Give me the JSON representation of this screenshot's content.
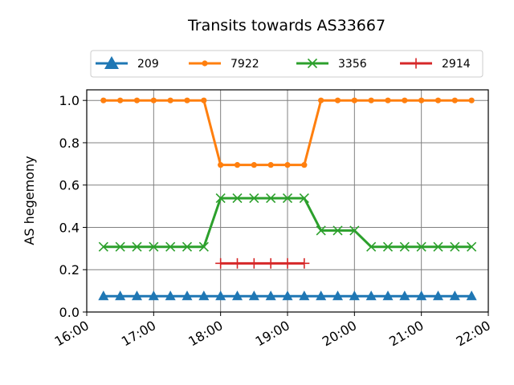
{
  "chart_data": {
    "type": "line",
    "title": "Transits towards AS33667",
    "xlabel": "",
    "ylabel": "AS hegemony",
    "x_ticks": [
      "16:00",
      "17:00",
      "18:00",
      "19:00",
      "20:00",
      "21:00",
      "22:00"
    ],
    "y_ticks": [
      "0.0",
      "0.2",
      "0.4",
      "0.6",
      "0.8",
      "1.0"
    ],
    "xlim": [
      "16:00",
      "22:00"
    ],
    "ylim": [
      0,
      1.05
    ],
    "grid": true,
    "legend_position": "top",
    "series": [
      {
        "name": "209",
        "color": "#1f77b4",
        "marker": "triangle",
        "x": [
          "16:15",
          "16:30",
          "16:45",
          "17:00",
          "17:15",
          "17:30",
          "17:45",
          "18:00",
          "18:15",
          "18:30",
          "18:45",
          "19:00",
          "19:15",
          "19:30",
          "19:45",
          "20:00",
          "20:15",
          "20:30",
          "20:45",
          "21:00",
          "21:15",
          "21:30",
          "21:45"
        ],
        "values": [
          0.075,
          0.075,
          0.075,
          0.075,
          0.075,
          0.075,
          0.075,
          0.075,
          0.075,
          0.075,
          0.075,
          0.075,
          0.075,
          0.075,
          0.075,
          0.075,
          0.075,
          0.075,
          0.075,
          0.075,
          0.075,
          0.075,
          0.075
        ]
      },
      {
        "name": "7922",
        "color": "#ff7f0e",
        "marker": "point",
        "x": [
          "16:15",
          "16:30",
          "16:45",
          "17:00",
          "17:15",
          "17:30",
          "17:45",
          "18:00",
          "18:15",
          "18:30",
          "18:45",
          "19:00",
          "19:15",
          "19:30",
          "19:45",
          "20:00",
          "20:15",
          "20:30",
          "20:45",
          "21:00",
          "21:15",
          "21:30",
          "21:45"
        ],
        "values": [
          1.0,
          1.0,
          1.0,
          1.0,
          1.0,
          1.0,
          1.0,
          0.695,
          0.695,
          0.695,
          0.695,
          0.695,
          0.695,
          1.0,
          1.0,
          1.0,
          1.0,
          1.0,
          1.0,
          1.0,
          1.0,
          1.0,
          1.0
        ]
      },
      {
        "name": "3356",
        "color": "#2ca02c",
        "marker": "x",
        "x": [
          "16:15",
          "16:30",
          "16:45",
          "17:00",
          "17:15",
          "17:30",
          "17:45",
          "18:00",
          "18:15",
          "18:30",
          "18:45",
          "19:00",
          "19:15",
          "19:30",
          "19:45",
          "20:00",
          "20:15",
          "20:30",
          "20:45",
          "21:00",
          "21:15",
          "21:30",
          "21:45"
        ],
        "values": [
          0.308,
          0.308,
          0.308,
          0.308,
          0.308,
          0.308,
          0.308,
          0.538,
          0.538,
          0.538,
          0.538,
          0.538,
          0.538,
          0.385,
          0.385,
          0.385,
          0.308,
          0.308,
          0.308,
          0.308,
          0.308,
          0.308,
          0.308
        ]
      },
      {
        "name": "2914",
        "color": "#d62728",
        "marker": "plus",
        "x": [
          "18:00",
          "18:15",
          "18:30",
          "18:45",
          "19:00",
          "19:15"
        ],
        "values": [
          0.23,
          0.23,
          0.23,
          0.23,
          0.23,
          0.23
        ]
      }
    ]
  }
}
